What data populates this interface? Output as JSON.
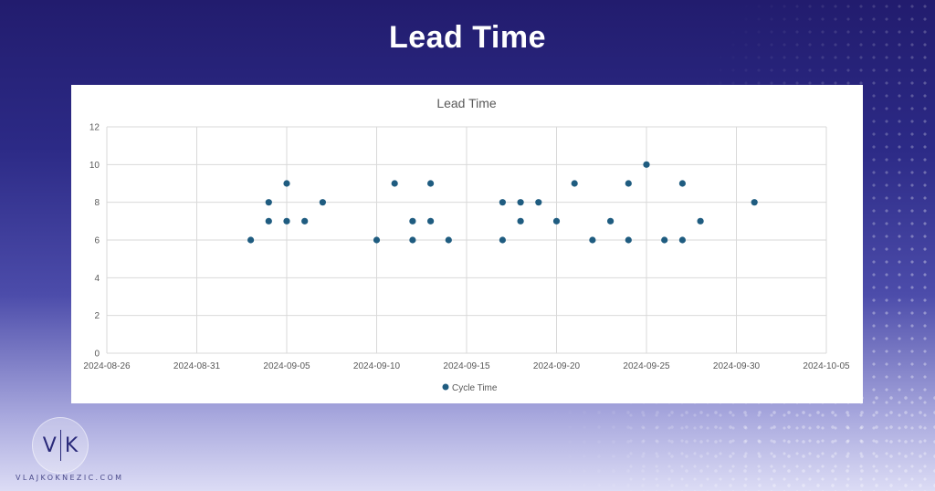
{
  "page": {
    "title": "Lead Time",
    "site": "VLAJKOKNEZIC.COM"
  },
  "logo": {
    "left": "V",
    "right": "K"
  },
  "colors": {
    "marker": "#1f5c80",
    "grid": "#d9d9d9",
    "text": "#595959"
  },
  "chart_data": {
    "type": "scatter",
    "title": "Lead Time",
    "xlabel": "",
    "ylabel": "",
    "xlim": [
      "2024-08-26",
      "2024-10-05"
    ],
    "ylim": [
      0,
      12
    ],
    "x_ticks": [
      "2024-08-26",
      "2024-08-31",
      "2024-09-05",
      "2024-09-10",
      "2024-09-15",
      "2024-09-20",
      "2024-09-25",
      "2024-09-30",
      "2024-10-05"
    ],
    "y_ticks": [
      0,
      2,
      4,
      6,
      8,
      10,
      12
    ],
    "grid": true,
    "legend": "bottom",
    "series": [
      {
        "name": "Cycle Time",
        "points": [
          [
            "2024-09-03",
            6
          ],
          [
            "2024-09-04",
            7
          ],
          [
            "2024-09-04",
            8
          ],
          [
            "2024-09-05",
            7
          ],
          [
            "2024-09-05",
            9
          ],
          [
            "2024-09-06",
            7
          ],
          [
            "2024-09-07",
            8
          ],
          [
            "2024-09-10",
            6
          ],
          [
            "2024-09-11",
            9
          ],
          [
            "2024-09-12",
            6
          ],
          [
            "2024-09-12",
            7
          ],
          [
            "2024-09-13",
            7
          ],
          [
            "2024-09-13",
            9
          ],
          [
            "2024-09-14",
            6
          ],
          [
            "2024-09-17",
            6
          ],
          [
            "2024-09-17",
            8
          ],
          [
            "2024-09-18",
            7
          ],
          [
            "2024-09-18",
            8
          ],
          [
            "2024-09-19",
            8
          ],
          [
            "2024-09-20",
            7
          ],
          [
            "2024-09-21",
            9
          ],
          [
            "2024-09-22",
            6
          ],
          [
            "2024-09-23",
            7
          ],
          [
            "2024-09-24",
            6
          ],
          [
            "2024-09-24",
            9
          ],
          [
            "2024-09-25",
            10
          ],
          [
            "2024-09-26",
            6
          ],
          [
            "2024-09-27",
            6
          ],
          [
            "2024-09-27",
            9
          ],
          [
            "2024-09-28",
            7
          ],
          [
            "2024-10-01",
            8
          ]
        ]
      }
    ]
  }
}
